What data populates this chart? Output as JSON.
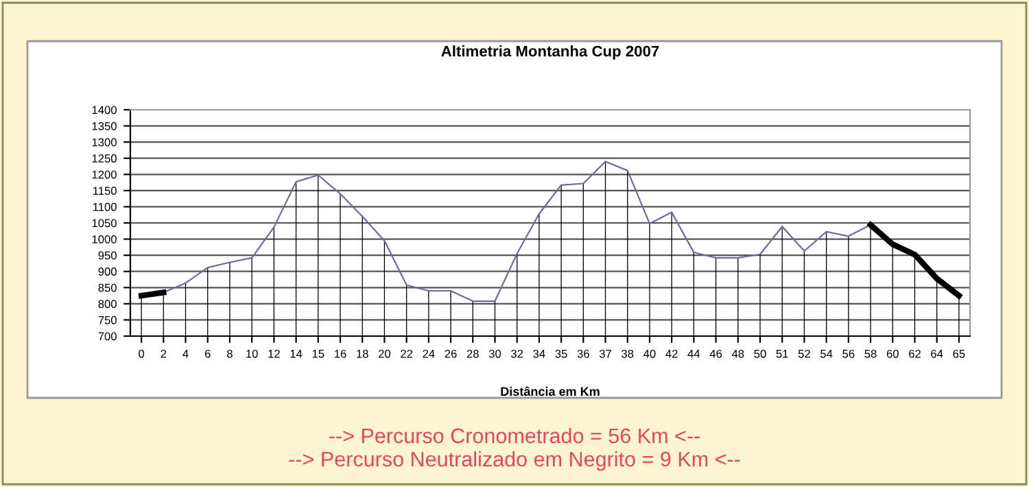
{
  "chart_data": {
    "type": "line",
    "title": "Altimetria Montanha Cup 2007",
    "xlabel": "Distância em Km",
    "categories": [
      "0",
      "2",
      "4",
      "6",
      "8",
      "10",
      "12",
      "14",
      "15",
      "16",
      "18",
      "20",
      "22",
      "24",
      "26",
      "28",
      "30",
      "32",
      "34",
      "35",
      "36",
      "37",
      "38",
      "40",
      "42",
      "44",
      "46",
      "48",
      "50",
      "51",
      "52",
      "54",
      "56",
      "58",
      "60",
      "62",
      "64",
      "65"
    ],
    "series": [
      {
        "type": "bar",
        "color": "#000000",
        "values": [
          825,
          835,
          864,
          912,
          928,
          942,
          1037,
          1177,
          1198,
          1140,
          1070,
          995,
          858,
          840,
          840,
          808,
          808,
          955,
          1078,
          1167,
          1172,
          1240,
          1212,
          1048,
          1083,
          959,
          942,
          942,
          953,
          1039,
          963,
          1023,
          1009,
          1044,
          984,
          952,
          878,
          825
        ]
      },
      {
        "color": "#6b6b9c",
        "values": [
          825,
          835,
          864,
          912,
          928,
          942,
          1037,
          1177,
          1198,
          1140,
          1070,
          995,
          858,
          840,
          840,
          808,
          808,
          955,
          1078,
          1167,
          1172,
          1240,
          1212,
          1048,
          1083,
          959,
          942,
          942,
          953,
          1039,
          963,
          1023,
          1009,
          1044,
          984,
          952,
          878,
          825
        ]
      },
      {
        "color": "#000000",
        "values": [
          825,
          835,
          null,
          null,
          null,
          null,
          null,
          null,
          null,
          null,
          null,
          null,
          null,
          null,
          null,
          null,
          null,
          null,
          null,
          null,
          null,
          null,
          null,
          null,
          null,
          null,
          null,
          null,
          null,
          null,
          null,
          null,
          null,
          1044,
          984,
          952,
          878,
          825
        ]
      }
    ],
    "ylim": [
      700,
      1400
    ],
    "yticks": [
      700,
      750,
      800,
      850,
      900,
      950,
      1000,
      1050,
      1100,
      1150,
      1200,
      1250,
      1300,
      1350,
      1400
    ],
    "grid": "y",
    "legend": false,
    "annotations": [
      "--> Percurso Cronometrado = 56 Km <--",
      "--> Percurso Neutralizado em Negrito = 9 Km <--"
    ]
  }
}
